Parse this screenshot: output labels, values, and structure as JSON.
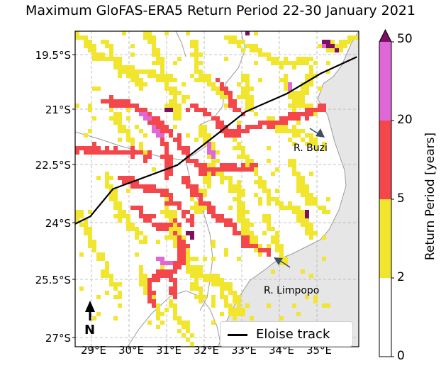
{
  "title": "Maximum GloFAS-ERA5 Return Period 22-30 January 2021",
  "latitude_labels": [
    "19.5°S",
    "21°S",
    "22.5°S",
    "24°S",
    "25.5°S",
    "27°S"
  ],
  "longitude_labels": [
    "29°E",
    "30°E",
    "31°E",
    "32°E",
    "33°E",
    "34°E",
    "35°E"
  ],
  "colorbar": {
    "label": "Return Period [years]",
    "ticks": [
      "0",
      "2",
      "5",
      "20",
      "50"
    ],
    "colors": {
      "0-2": "#ffffff",
      "2-5": "#f2e52e",
      "5-20": "#f4474b",
      "20-50": "#e067d8",
      "over-50": "#7f0f63"
    }
  },
  "annotations": {
    "buzi": "R. Buzi",
    "limpopo": "R. Limpopo"
  },
  "legend": {
    "track_label": "Eloise track"
  },
  "north_arrow": {
    "label": "N"
  },
  "chart_data": {
    "type": "map",
    "title": "Maximum GloFAS-ERA5 Return Period 22-30 January 2021",
    "legend": [
      "Eloise track"
    ],
    "colorbar_label": "Return Period [years]",
    "colorbar_bounds": [
      0,
      2,
      5,
      20,
      50
    ],
    "longitude_range": [
      28.5,
      36.0
    ],
    "latitude_range": [
      -27.4,
      -18.8
    ],
    "eloise_track": {
      "lon": [
        28.5,
        28.9,
        29.5,
        31.2,
        32.2,
        33.0,
        34.1,
        35.0,
        35.95
      ],
      "lat": [
        -24.05,
        -23.85,
        -23.1,
        -22.45,
        -21.65,
        -21.0,
        -20.5,
        -19.95,
        -19.5
      ]
    },
    "labeled_rivers": [
      "R. Buzi",
      "R. Limpopo"
    ]
  }
}
